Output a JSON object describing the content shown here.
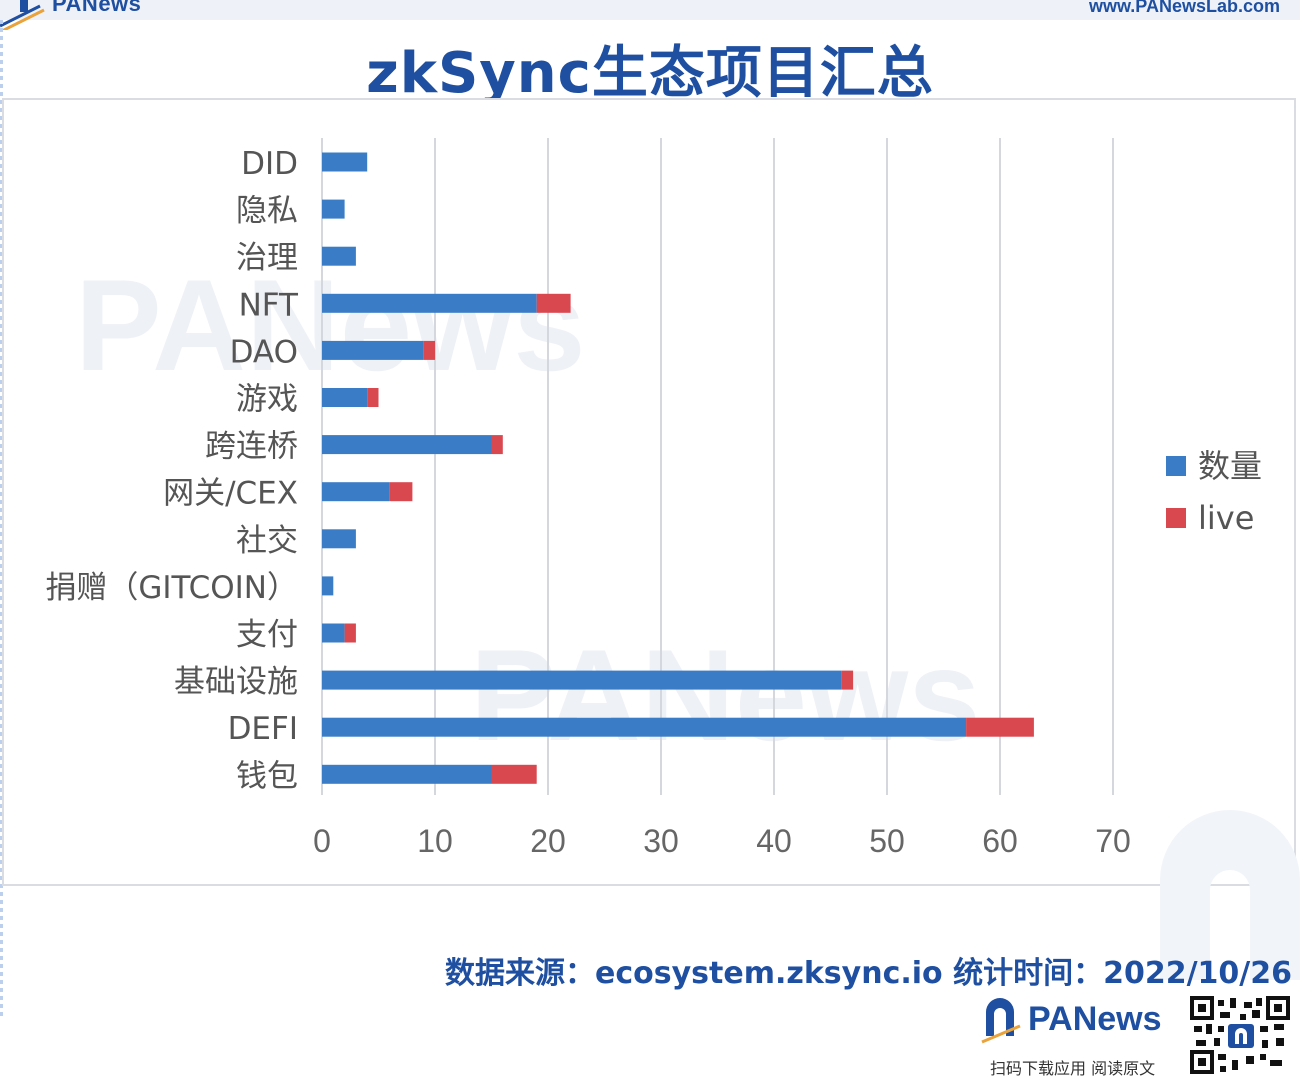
{
  "header": {
    "logo_text": "PANews",
    "url": "www.PANewsLab.com"
  },
  "title": "zkSync生态项目汇总",
  "chart_data": {
    "type": "bar",
    "orientation": "horizontal",
    "stacked": true,
    "categories": [
      "DID",
      "隐私",
      "治理",
      "NFT",
      "DAO",
      "游戏",
      "跨连桥",
      "网关/CEX",
      "社交",
      "捐赠（GITCOIN）",
      "支付",
      "基础设施",
      "DEFI",
      "钱包"
    ],
    "series": [
      {
        "name": "数量",
        "color": "#3a7dc6",
        "values": [
          4,
          2,
          3,
          19,
          9,
          4,
          15,
          6,
          3,
          1,
          2,
          46,
          57,
          15
        ]
      },
      {
        "name": "live",
        "color": "#d9474f",
        "values": [
          0,
          0,
          0,
          3,
          1,
          1,
          1,
          2,
          0,
          0,
          1,
          1,
          6,
          4
        ]
      }
    ],
    "x_ticks": [
      0,
      10,
      20,
      30,
      40,
      50,
      60,
      70
    ],
    "xlim": [
      0,
      70
    ],
    "grid": "vertical",
    "legend_position": "right"
  },
  "watermark": "PANews",
  "footer": {
    "source": "数据来源：ecosystem.zksync.io 统计时间：2022/10/26",
    "brand_name": "PANews",
    "caption": "扫码下载应用 阅读原文"
  },
  "colors": {
    "brand_blue": "#1f4fa0",
    "bar_blue": "#3a7dc6",
    "bar_red": "#d9474f",
    "grid": "#d4d8de"
  }
}
